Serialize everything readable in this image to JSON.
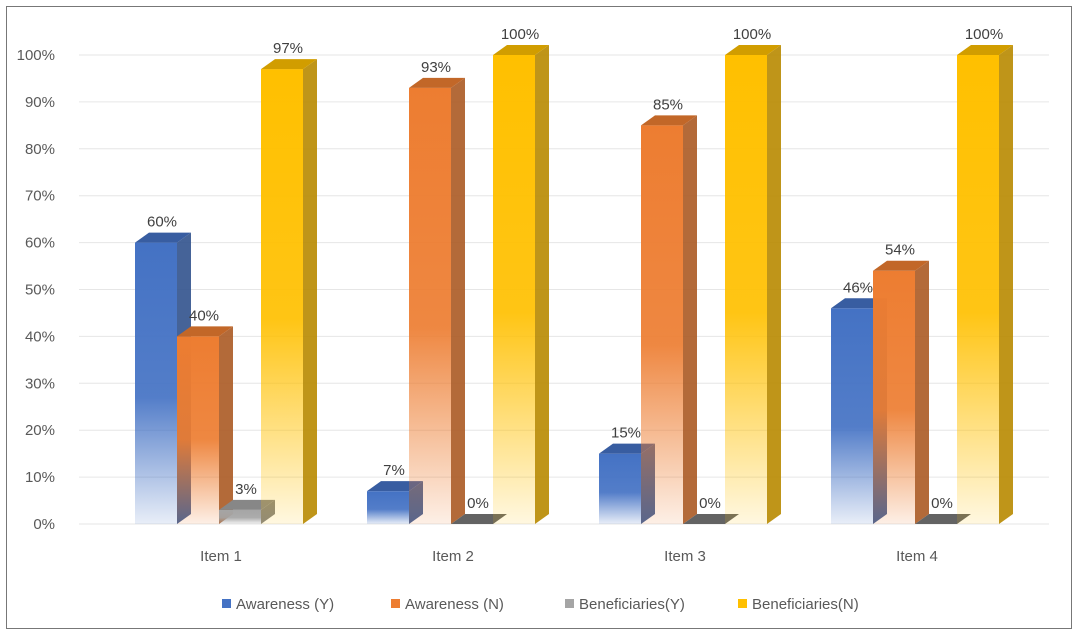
{
  "chart_data": {
    "type": "bar",
    "style": "3d-clustered-column",
    "categories": [
      "Item 1",
      "Item 2",
      "Item 3",
      "Item 4"
    ],
    "series": [
      {
        "name": "Awareness (Y)",
        "values": [
          60,
          7,
          15,
          46
        ],
        "labels": [
          "60%",
          "7%",
          "15%",
          "46%"
        ],
        "color": "#4472C4"
      },
      {
        "name": "Awareness (N)",
        "values": [
          40,
          93,
          85,
          54
        ],
        "labels": [
          "40%",
          "93%",
          "85%",
          "54%"
        ],
        "color": "#ED7D31"
      },
      {
        "name": "Beneficiaries(Y)",
        "values": [
          3,
          0,
          0,
          0
        ],
        "labels": [
          "3%",
          "0%",
          "0%",
          "0%"
        ],
        "color": "#A5A5A5"
      },
      {
        "name": "Beneficiaries(N)",
        "values": [
          97,
          100,
          100,
          100
        ],
        "labels": [
          "97%",
          "100%",
          "100%",
          "100%"
        ],
        "color": "#FFC000"
      }
    ],
    "yticks": [
      "0%",
      "10%",
      "20%",
      "30%",
      "40%",
      "50%",
      "60%",
      "70%",
      "80%",
      "90%",
      "100%"
    ],
    "ylim": [
      0,
      100
    ],
    "grid": true,
    "legend_position": "bottom"
  }
}
